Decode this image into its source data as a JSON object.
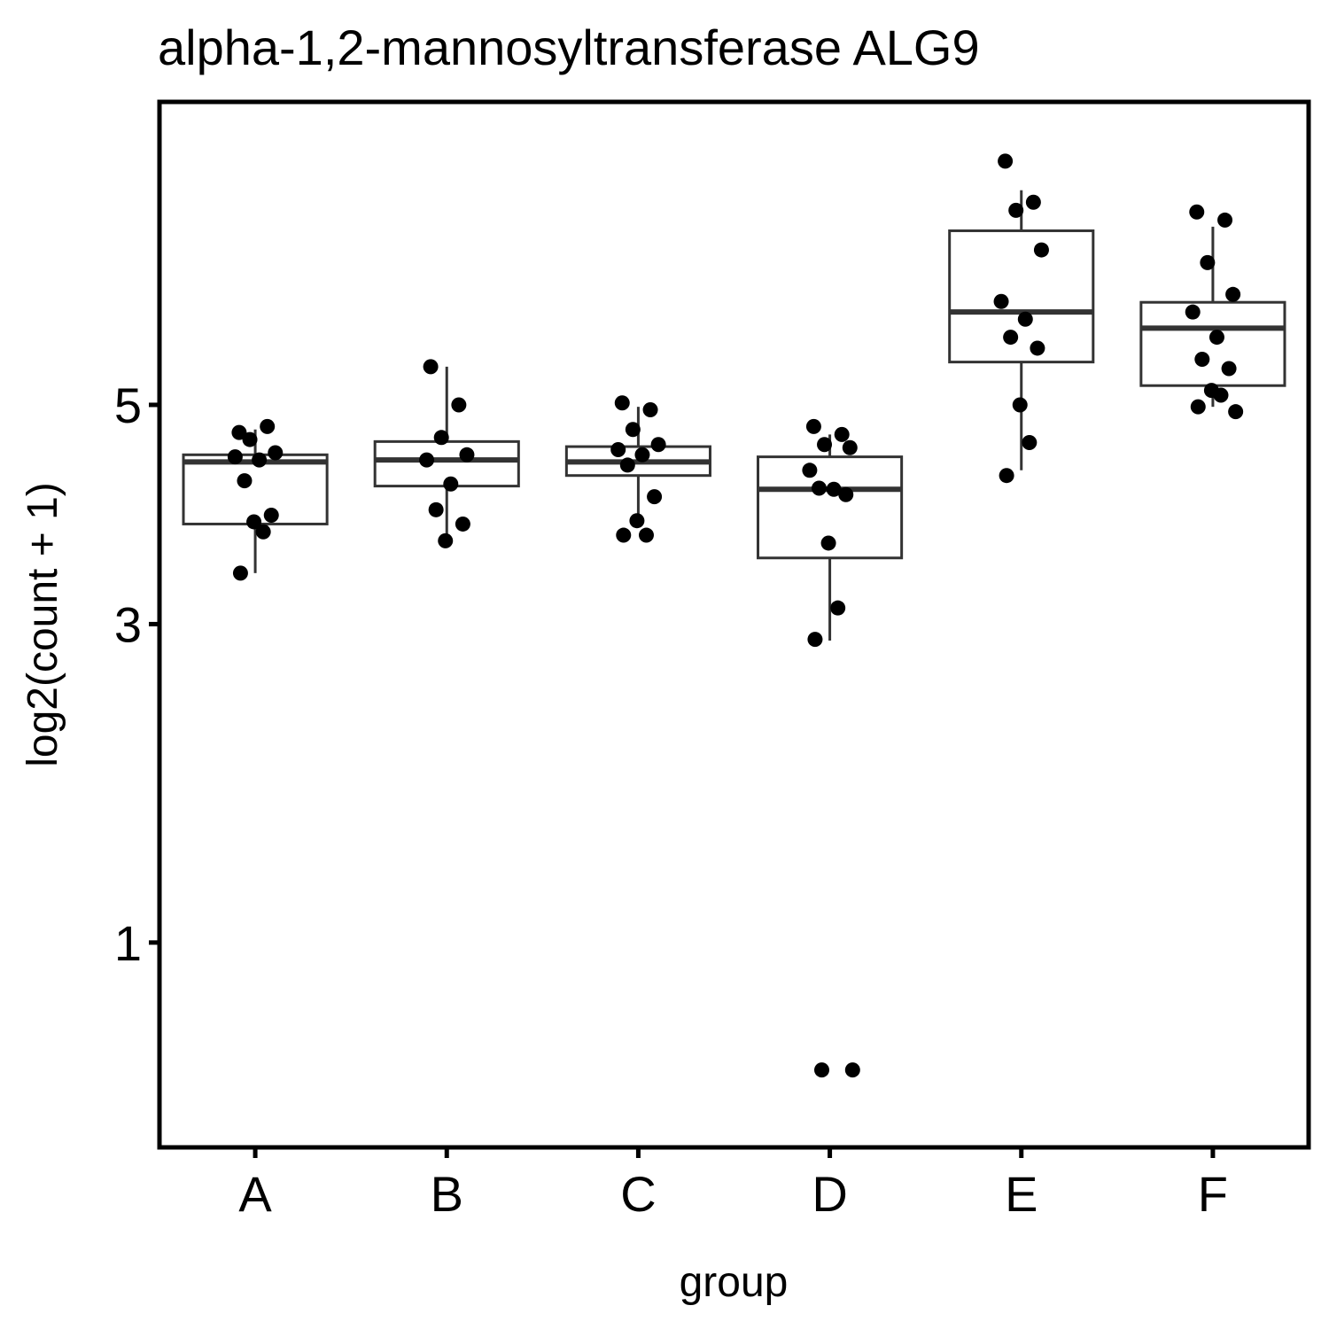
{
  "chart_data": {
    "type": "box",
    "title": "alpha-1,2-mannosyltransferase ALG9",
    "xlabel": "group",
    "ylabel": "log2(count + 1)",
    "y_scale": "sqrt",
    "ylim": [
      0.28,
      8.6
    ],
    "yticks": [
      1,
      3,
      5
    ],
    "categories": [
      "A",
      "B",
      "C",
      "D",
      "E",
      "F"
    ],
    "boxes": [
      {
        "q1": 3.85,
        "median": 4.43,
        "q3": 4.5,
        "whisker_low": 3.42,
        "whisker_high": 4.75
      },
      {
        "q1": 4.2,
        "median": 4.45,
        "q3": 4.63,
        "whisker_low": 3.7,
        "whisker_high": 5.4
      },
      {
        "q1": 4.3,
        "median": 4.43,
        "q3": 4.58,
        "whisker_low": 3.9,
        "whisker_high": 4.98
      },
      {
        "q1": 3.55,
        "median": 4.17,
        "q3": 4.48,
        "whisker_low": 2.87,
        "whisker_high": 4.7
      },
      {
        "q1": 5.45,
        "median": 6.0,
        "q3": 6.95,
        "whisker_low": 4.35,
        "whisker_high": 7.45
      },
      {
        "q1": 5.2,
        "median": 5.82,
        "q3": 6.11,
        "whisker_low": 4.98,
        "whisker_high": 7.0
      }
    ],
    "points": [
      [
        4.72,
        4.78,
        4.65,
        4.52,
        4.48,
        4.45,
        4.25,
        3.93,
        3.87,
        3.78,
        3.42
      ],
      [
        5.4,
        5.0,
        4.67,
        4.5,
        4.45,
        4.22,
        3.98,
        3.85,
        3.7
      ],
      [
        5.02,
        4.95,
        4.75,
        4.6,
        4.55,
        4.5,
        4.4,
        4.1,
        3.88,
        3.75,
        3.75
      ],
      [
        4.78,
        4.7,
        4.6,
        4.57,
        4.35,
        4.17,
        4.18,
        4.12,
        3.68,
        3.13,
        2.88,
        0.5,
        0.5
      ],
      [
        7.82,
        7.3,
        7.2,
        6.72,
        6.12,
        5.92,
        5.72,
        5.6,
        5.0,
        4.62,
        4.3
      ],
      [
        7.18,
        7.08,
        6.57,
        6.2,
        6.0,
        5.72,
        5.48,
        5.38,
        5.15,
        5.1,
        4.98,
        4.93
      ]
    ]
  }
}
